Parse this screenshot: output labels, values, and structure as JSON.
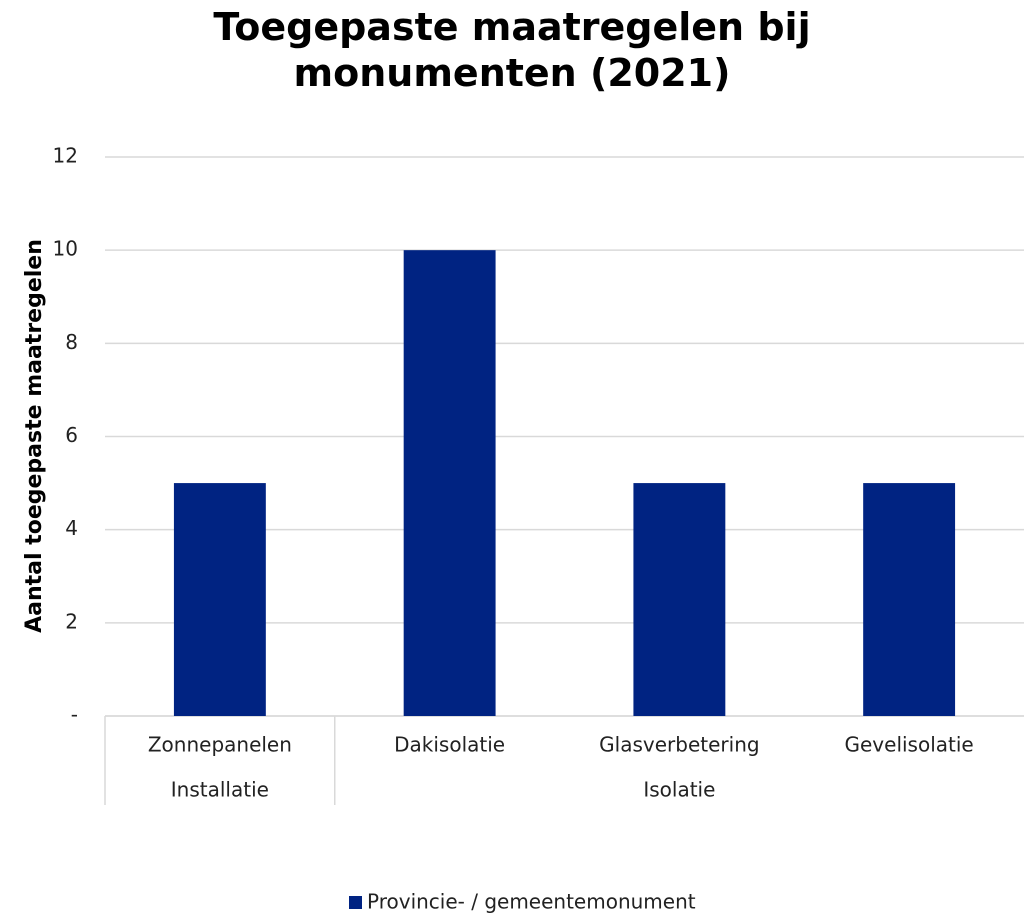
{
  "chart_data": {
    "type": "bar",
    "title": "Toegepaste maatregelen bij monumenten (2021)",
    "ylabel": "Aantal toegepaste maatregelen",
    "categories": [
      "Zonnepanelen",
      "Dakisolatie",
      "Glasverbetering",
      "Gevelisolatie"
    ],
    "groups": [
      {
        "name": "Installatie",
        "span": 1
      },
      {
        "name": "Isolatie",
        "span": 3
      }
    ],
    "series": [
      {
        "name": "Provincie- / gemeentemonument",
        "color": "#002382",
        "values": [
          5,
          10,
          5,
          5
        ]
      }
    ],
    "ylim": [
      0,
      12
    ],
    "yticks": [
      {
        "value": 0,
        "label": "-"
      },
      2,
      4,
      6,
      8,
      10,
      12
    ],
    "grid": true,
    "legend": "bottom"
  }
}
